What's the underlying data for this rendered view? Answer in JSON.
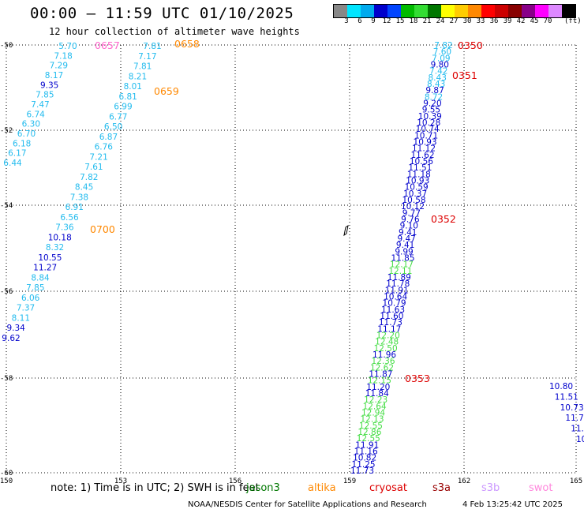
{
  "title": "00:00 — 11:59 UTC 01/10/2025",
  "subtitle": "12 hour collection of altimeter wave heights",
  "colorbar": {
    "colors": [
      "#888888",
      "#00e5ff",
      "#00aaee",
      "#0000cc",
      "#0044ff",
      "#00bb00",
      "#33dd33",
      "#007700",
      "#ffff00",
      "#ffcc00",
      "#ff8800",
      "#ff0000",
      "#cc0000",
      "#880000",
      "#880088",
      "#ff00ff",
      "#dd88ff",
      "#000000"
    ],
    "ticks": [
      "3",
      "6",
      "9",
      "12",
      "15",
      "18",
      "21",
      "24",
      "27",
      "30",
      "33",
      "36",
      "39",
      "42",
      "45",
      "70"
    ],
    "unit": "(ft)"
  },
  "map": {
    "lat_labels": [
      "-50",
      "-52",
      "-54",
      "-56",
      "-58",
      "-60"
    ],
    "lon_labels": [
      "150",
      "153",
      "156",
      "159",
      "162",
      "165"
    ]
  },
  "tracks": [
    {
      "name": "track-west",
      "points": [
        {
          "v": "5.70",
          "c": "#22bbee"
        },
        {
          "v": "7.18",
          "c": "#22bbee"
        },
        {
          "v": "7.29",
          "c": "#22bbee"
        },
        {
          "v": "8.17",
          "c": "#22bbee"
        },
        {
          "v": "9.35",
          "c": "#0000cc"
        },
        {
          "v": "7.85",
          "c": "#22bbee"
        },
        {
          "v": "7.47",
          "c": "#22bbee"
        },
        {
          "v": "6.74",
          "c": "#22bbee"
        },
        {
          "v": "6.30",
          "c": "#22bbee"
        },
        {
          "v": "6.70",
          "c": "#22bbee"
        },
        {
          "v": "6.18",
          "c": "#22bbee"
        },
        {
          "v": "6.17",
          "c": "#22bbee"
        },
        {
          "v": "6.44",
          "c": "#22bbee"
        }
      ]
    },
    {
      "name": "track-middle",
      "points": [
        {
          "v": "7.81",
          "c": "#22bbee"
        },
        {
          "v": "7.17",
          "c": "#22bbee"
        },
        {
          "v": "7.81",
          "c": "#22bbee"
        },
        {
          "v": "8.21",
          "c": "#22bbee"
        },
        {
          "v": "8.01",
          "c": "#22bbee"
        },
        {
          "v": "6.81",
          "c": "#22bbee"
        },
        {
          "v": "6.99",
          "c": "#22bbee"
        },
        {
          "v": "6.77",
          "c": "#22bbee"
        },
        {
          "v": "6.50",
          "c": "#22bbee"
        },
        {
          "v": "6.87",
          "c": "#22bbee"
        },
        {
          "v": "6.76",
          "c": "#22bbee"
        },
        {
          "v": "7.21",
          "c": "#22bbee"
        },
        {
          "v": "7.61",
          "c": "#22bbee"
        },
        {
          "v": "7.82",
          "c": "#22bbee"
        },
        {
          "v": "8.45",
          "c": "#22bbee"
        },
        {
          "v": "7.38",
          "c": "#22bbee"
        },
        {
          "v": "6.91",
          "c": "#22bbee"
        },
        {
          "v": "6.56",
          "c": "#22bbee"
        },
        {
          "v": "7.36",
          "c": "#22bbee"
        },
        {
          "v": "10.18",
          "c": "#0000cc"
        },
        {
          "v": "8.32",
          "c": "#22bbee"
        },
        {
          "v": "10.55",
          "c": "#0000cc"
        },
        {
          "v": "11.27",
          "c": "#0000cc"
        },
        {
          "v": "8.84",
          "c": "#22bbee"
        },
        {
          "v": "7.85",
          "c": "#22bbee"
        },
        {
          "v": "6.06",
          "c": "#22bbee"
        },
        {
          "v": "7.37",
          "c": "#22bbee"
        },
        {
          "v": "8.11",
          "c": "#22bbee"
        },
        {
          "v": "9.34",
          "c": "#0000cc"
        },
        {
          "v": "9.62",
          "c": "#0000cc"
        }
      ]
    },
    {
      "name": "track-east",
      "points": [
        {
          "v": "7.82",
          "c": "#22bbee"
        },
        {
          "v": "7.60",
          "c": "#22bbee"
        },
        {
          "v": "7.09",
          "c": "#22bbee"
        },
        {
          "v": "9.80",
          "c": "#0000cc"
        },
        {
          "v": "7.42",
          "c": "#22bbee"
        },
        {
          "v": "8.43",
          "c": "#22bbee"
        },
        {
          "v": "8.43",
          "c": "#22bbee"
        },
        {
          "v": "9.87",
          "c": "#0000cc"
        },
        {
          "v": "8.72",
          "c": "#22bbee"
        },
        {
          "v": "9.20",
          "c": "#0000cc"
        },
        {
          "v": "9.55",
          "c": "#0000cc"
        },
        {
          "v": "10.39",
          "c": "#0000cc"
        },
        {
          "v": "10.28",
          "c": "#0000cc"
        },
        {
          "v": "10.74",
          "c": "#0000cc"
        },
        {
          "v": "10.71",
          "c": "#0000cc"
        },
        {
          "v": "10.93",
          "c": "#0000cc"
        },
        {
          "v": "11.12",
          "c": "#0000cc"
        },
        {
          "v": "11.62",
          "c": "#0000cc"
        },
        {
          "v": "10.56",
          "c": "#0000cc"
        },
        {
          "v": "11.51",
          "c": "#0000cc"
        },
        {
          "v": "11.18",
          "c": "#0000cc"
        },
        {
          "v": "10.93",
          "c": "#0000cc"
        },
        {
          "v": "10.59",
          "c": "#0000cc"
        },
        {
          "v": "10.37",
          "c": "#0000cc"
        },
        {
          "v": "10.58",
          "c": "#0000cc"
        },
        {
          "v": "10.12",
          "c": "#0000cc"
        },
        {
          "v": "9.77",
          "c": "#0000cc"
        },
        {
          "v": "9.76",
          "c": "#0000cc"
        },
        {
          "v": "9.10",
          "c": "#0000cc"
        },
        {
          "v": "9.41",
          "c": "#0000cc"
        },
        {
          "v": "9.47",
          "c": "#0000cc"
        },
        {
          "v": "9.41",
          "c": "#0000cc"
        },
        {
          "v": "9.99",
          "c": "#0000cc"
        },
        {
          "v": "11.85",
          "c": "#0000cc"
        },
        {
          "v": "12.17",
          "c": "#44dd44"
        },
        {
          "v": "12.11",
          "c": "#44dd44"
        },
        {
          "v": "11.89",
          "c": "#0000cc"
        },
        {
          "v": "11.78",
          "c": "#0000cc"
        },
        {
          "v": "11.91",
          "c": "#0000cc"
        },
        {
          "v": "10.64",
          "c": "#0000cc"
        },
        {
          "v": "10.79",
          "c": "#0000cc"
        },
        {
          "v": "11.63",
          "c": "#0000cc"
        },
        {
          "v": "11.60",
          "c": "#0000cc"
        },
        {
          "v": "11.73",
          "c": "#0000cc"
        },
        {
          "v": "11.17",
          "c": "#0000cc"
        },
        {
          "v": "12.20",
          "c": "#44dd44"
        },
        {
          "v": "12.48",
          "c": "#44dd44"
        },
        {
          "v": "12.50",
          "c": "#44dd44"
        },
        {
          "v": "11.96",
          "c": "#0000cc"
        },
        {
          "v": "12.36",
          "c": "#44dd44"
        },
        {
          "v": "12.62",
          "c": "#44dd44"
        },
        {
          "v": "11.87",
          "c": "#0000cc"
        },
        {
          "v": "12.15",
          "c": "#44dd44"
        },
        {
          "v": "11.20",
          "c": "#0000cc"
        },
        {
          "v": "11.84",
          "c": "#0000cc"
        },
        {
          "v": "12.23",
          "c": "#44dd44"
        },
        {
          "v": "12.64",
          "c": "#44dd44"
        },
        {
          "v": "12.94",
          "c": "#44dd44"
        },
        {
          "v": "12.13",
          "c": "#44dd44"
        },
        {
          "v": "12.55",
          "c": "#44dd44"
        },
        {
          "v": "12.86",
          "c": "#44dd44"
        },
        {
          "v": "12.55",
          "c": "#44dd44"
        },
        {
          "v": "11.91",
          "c": "#0000cc"
        },
        {
          "v": "11.16",
          "c": "#0000cc"
        },
        {
          "v": "10.82",
          "c": "#0000cc"
        },
        {
          "v": "11.25",
          "c": "#0000cc"
        },
        {
          "v": "11.73",
          "c": "#0000cc"
        }
      ]
    },
    {
      "name": "track-far-east",
      "points": [
        {
          "v": "10.80",
          "c": "#0000cc"
        },
        {
          "v": "11.51",
          "c": "#0000cc"
        },
        {
          "v": "10.73",
          "c": "#0000cc"
        },
        {
          "v": "11.7",
          "c": "#0000cc"
        },
        {
          "v": "11.",
          "c": "#0000cc"
        },
        {
          "v": "10",
          "c": "#0000cc"
        }
      ]
    }
  ],
  "time_labels": [
    {
      "t": "0657",
      "c": "#ff66cc"
    },
    {
      "t": "0658",
      "c": "#ff8800"
    },
    {
      "t": "0659",
      "c": "#ff8800"
    },
    {
      "t": "0700",
      "c": "#ff8800"
    },
    {
      "t": "0350",
      "c": "#dd0000"
    },
    {
      "t": "0351",
      "c": "#dd0000"
    },
    {
      "t": "0352",
      "c": "#dd0000"
    },
    {
      "t": "0353",
      "c": "#dd0000"
    }
  ],
  "note": "note: 1) Time is in UTC; 2) SWH is in feet",
  "satellites": [
    {
      "name": "jason3",
      "color": "#007700"
    },
    {
      "name": "altika",
      "color": "#ff8800"
    },
    {
      "name": "cryosat",
      "color": "#dd0000"
    },
    {
      "name": "s3a",
      "color": "#990000"
    },
    {
      "name": "s3b",
      "color": "#cc99ff"
    },
    {
      "name": "swot",
      "color": "#ff88dd"
    }
  ],
  "credit": "NOAA/NESDIS Center for Satellite Applications and Research",
  "timestamp": "4 Feb 13:25:42 UTC 2025"
}
